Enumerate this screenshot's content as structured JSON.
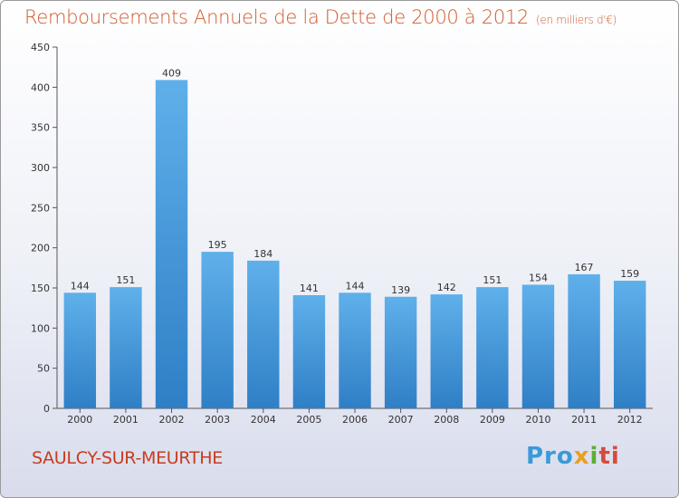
{
  "chart_data": {
    "type": "bar",
    "title": "Remboursements Annuels de la Dette de 2000 à 2012",
    "subtitle": "(en milliers d'€)",
    "categories": [
      "2000",
      "2001",
      "2002",
      "2003",
      "2004",
      "2005",
      "2006",
      "2007",
      "2008",
      "2009",
      "2010",
      "2011",
      "2012"
    ],
    "values": [
      144,
      151,
      409,
      195,
      184,
      141,
      144,
      139,
      142,
      151,
      154,
      167,
      159
    ],
    "ylim": [
      0,
      450
    ],
    "yticks": [
      0,
      50,
      100,
      150,
      200,
      250,
      300,
      350,
      400,
      450
    ],
    "grid": false,
    "bar_color": "#3d8fd6",
    "bar_color_light": "#5fb0ea"
  },
  "footer": {
    "town": "SAULCY-SUR-MEURTHE",
    "logo": [
      "Pro",
      "x",
      "i",
      "ti"
    ]
  },
  "colors": {
    "title": "#d05a2e",
    "town": "#c83c1e"
  }
}
